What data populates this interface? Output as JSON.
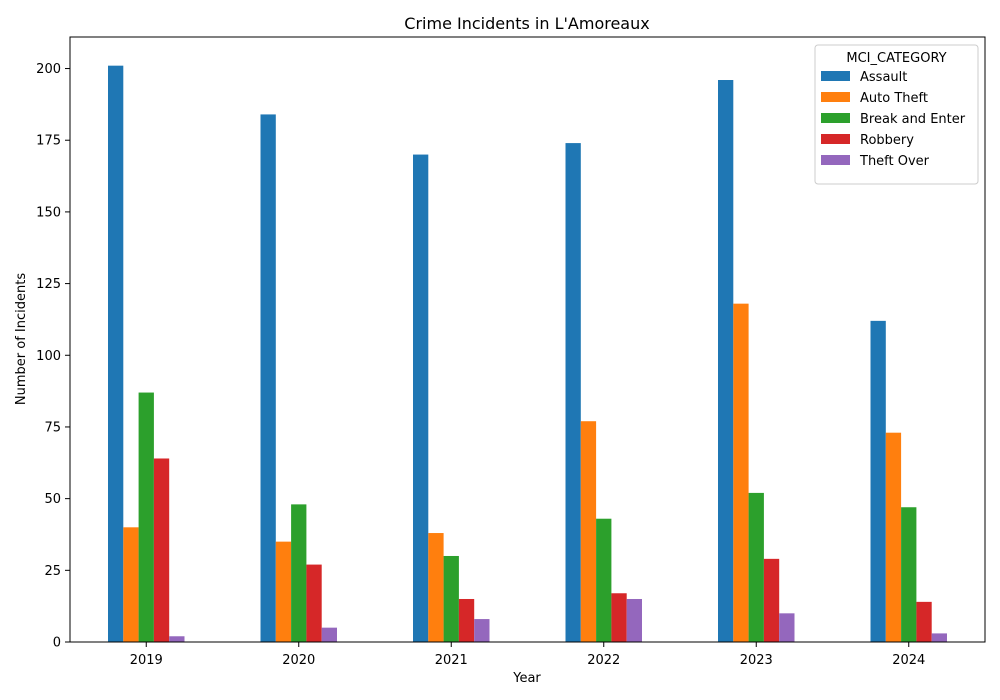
{
  "chart_data": {
    "type": "bar",
    "title": "Crime Incidents in L'Amoreaux",
    "xlabel": "Year",
    "ylabel": "Number of Incidents",
    "categories": [
      "2019",
      "2020",
      "2021",
      "2022",
      "2023",
      "2024"
    ],
    "ylim": [
      0,
      211
    ],
    "yticks": [
      0,
      25,
      50,
      75,
      100,
      125,
      150,
      175,
      200
    ],
    "legend_title": "MCI_CATEGORY",
    "legend_position": "top-right",
    "grid": false,
    "series": [
      {
        "name": "Assault",
        "color": "#1f77b4",
        "values": [
          201,
          184,
          170,
          174,
          196,
          112
        ]
      },
      {
        "name": "Auto Theft",
        "color": "#ff7f0e",
        "values": [
          40,
          35,
          38,
          77,
          118,
          73
        ]
      },
      {
        "name": "Break and Enter",
        "color": "#2ca02c",
        "values": [
          87,
          48,
          30,
          43,
          52,
          47
        ]
      },
      {
        "name": "Robbery",
        "color": "#d62728",
        "values": [
          64,
          27,
          15,
          17,
          29,
          14
        ]
      },
      {
        "name": "Theft Over",
        "color": "#9467bd",
        "values": [
          2,
          5,
          8,
          15,
          10,
          3
        ]
      }
    ]
  }
}
